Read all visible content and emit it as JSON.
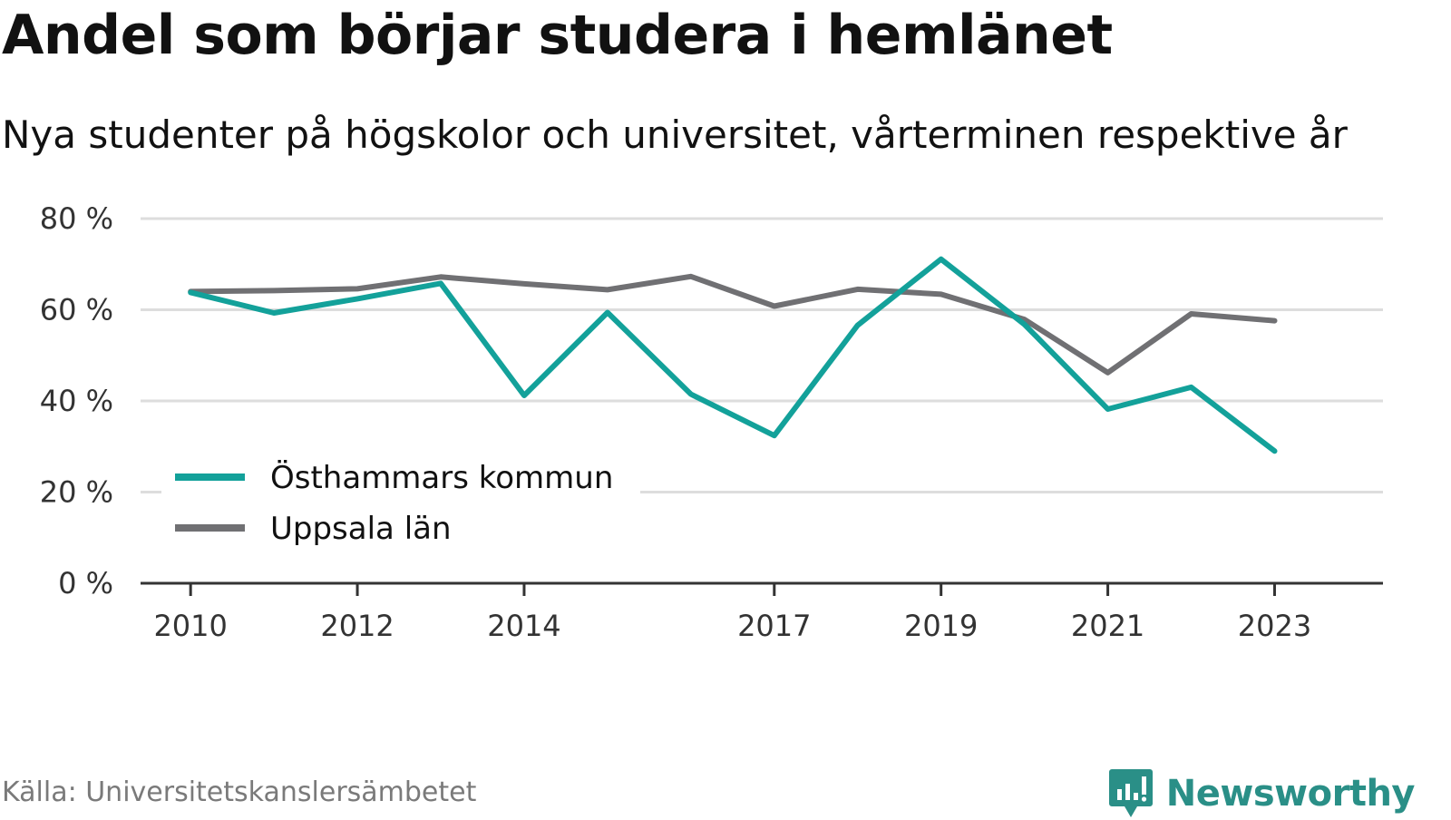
{
  "title": "Andel som börjar studera i hemlänet",
  "subtitle": "Nya studenter på högskolor och universitet, vårterminen respektive år",
  "source": "Källa: Universitetskanslersämbetet",
  "brand": "Newsworthy",
  "brand_color": "#2a8f87",
  "chart_data": {
    "type": "line",
    "x": [
      2010,
      2011,
      2012,
      2013,
      2014,
      2015,
      2016,
      2017,
      2018,
      2019,
      2020,
      2021,
      2022,
      2023
    ],
    "x_tick_labels": [
      "2010",
      "2012",
      "2014",
      "2017",
      "2019",
      "2021",
      "2023"
    ],
    "x_ticks": [
      2010,
      2012,
      2014,
      2017,
      2019,
      2021,
      2023
    ],
    "xlim": [
      2009.4,
      2024.3
    ],
    "ylim": [
      0,
      80
    ],
    "y_ticks": [
      0,
      20,
      40,
      60,
      80
    ],
    "y_tick_labels": [
      "0 %",
      "20 %",
      "40 %",
      "60 %",
      "80 %"
    ],
    "grid": true,
    "legend_position": "bottom-left",
    "series": [
      {
        "name": "Östhammars kommun",
        "color": "#13a19a",
        "values": [
          63.8,
          59.3,
          62.4,
          65.8,
          41.2,
          59.4,
          41.5,
          32.4,
          56.6,
          71.1,
          56.8,
          38.2,
          43.0,
          29.0
        ]
      },
      {
        "name": "Uppsala län",
        "color": "#707073",
        "values": [
          64.0,
          64.2,
          64.6,
          67.2,
          65.7,
          64.4,
          67.3,
          60.8,
          64.5,
          63.4,
          57.9,
          46.2,
          59.1,
          57.6
        ]
      }
    ]
  }
}
